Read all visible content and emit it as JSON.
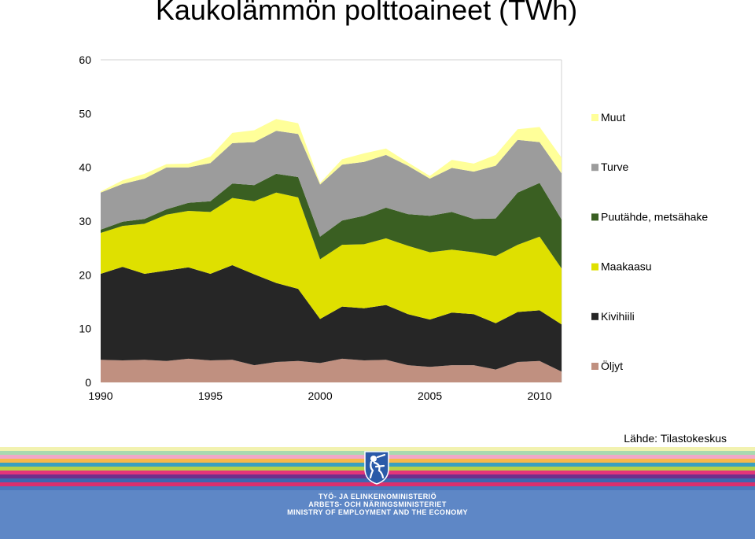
{
  "title": "Kaukolämmön polttoaineet (TWh)",
  "source": "Lähde: Tilastokeskus",
  "ministry": {
    "fi": "TYÖ- JA ELINKEINOMINISTERIÖ",
    "sv": "ARBETS- OCH NÄRINGSMINISTERIET",
    "en": "MINISTRY OF EMPLOYMENT AND THE ECONOMY"
  },
  "logo_icon": "lion-crest-icon",
  "chart_data": {
    "type": "area",
    "stacked": true,
    "x": [
      1990,
      1991,
      1992,
      1993,
      1994,
      1995,
      1996,
      1997,
      1998,
      1999,
      2000,
      2001,
      2002,
      2003,
      2004,
      2005,
      2006,
      2007,
      2008,
      2009,
      2010,
      2011
    ],
    "xticks": [
      "1990",
      "1995",
      "2000",
      "2005",
      "2010"
    ],
    "xtick_values": [
      1990,
      1995,
      2000,
      2005,
      2010
    ],
    "ylim": [
      0,
      60
    ],
    "yticks": [
      0,
      10,
      20,
      30,
      40,
      50,
      60
    ],
    "grid": false,
    "legend_position": "right",
    "series": [
      {
        "name": "Öljyt",
        "color": "#c09080",
        "values": [
          4.2,
          4.1,
          4.2,
          4.0,
          4.4,
          4.1,
          4.2,
          3.2,
          3.8,
          4.0,
          3.6,
          4.4,
          4.1,
          4.2,
          3.2,
          2.9,
          3.2,
          3.2,
          2.4,
          3.8,
          4.0,
          2.0
        ]
      },
      {
        "name": "Kivihiili",
        "color": "#262626",
        "values": [
          16.0,
          17.4,
          16.0,
          16.8,
          17.0,
          16.1,
          17.6,
          16.9,
          14.7,
          13.4,
          8.2,
          9.7,
          9.7,
          10.2,
          9.5,
          8.8,
          9.8,
          9.5,
          8.6,
          9.3,
          9.4,
          8.8
        ]
      },
      {
        "name": "Maakaasu",
        "color": "#dfe000",
        "values": [
          7.6,
          7.6,
          9.3,
          10.4,
          10.5,
          11.5,
          12.5,
          13.6,
          16.8,
          17.0,
          11.1,
          11.5,
          11.9,
          12.4,
          12.7,
          12.5,
          11.7,
          11.5,
          12.5,
          12.5,
          13.7,
          10.4
        ]
      },
      {
        "name": "Puutähde, metsähake",
        "color": "#3a5f22",
        "values": [
          0.6,
          0.8,
          0.9,
          1.0,
          1.5,
          2.0,
          2.7,
          3.0,
          3.5,
          3.8,
          4.2,
          4.5,
          5.3,
          5.7,
          5.9,
          6.8,
          7.0,
          6.2,
          7.0,
          9.7,
          10.0,
          9.1
        ]
      },
      {
        "name": "Turve",
        "color": "#9c9c9c",
        "values": [
          6.9,
          7.0,
          7.5,
          7.8,
          6.6,
          7.1,
          7.5,
          8.0,
          8.0,
          8.0,
          9.7,
          10.4,
          10.0,
          9.8,
          9.0,
          6.9,
          8.2,
          8.8,
          9.8,
          9.8,
          7.6,
          8.6
        ]
      },
      {
        "name": "Muut",
        "color": "#ffff99",
        "values": [
          0.2,
          0.7,
          0.9,
          0.6,
          0.7,
          1.2,
          1.9,
          2.2,
          2.2,
          2.0,
          0.3,
          1.0,
          1.6,
          1.2,
          0.6,
          0.5,
          1.5,
          1.5,
          2.0,
          2.0,
          2.8,
          2.9
        ]
      }
    ]
  }
}
